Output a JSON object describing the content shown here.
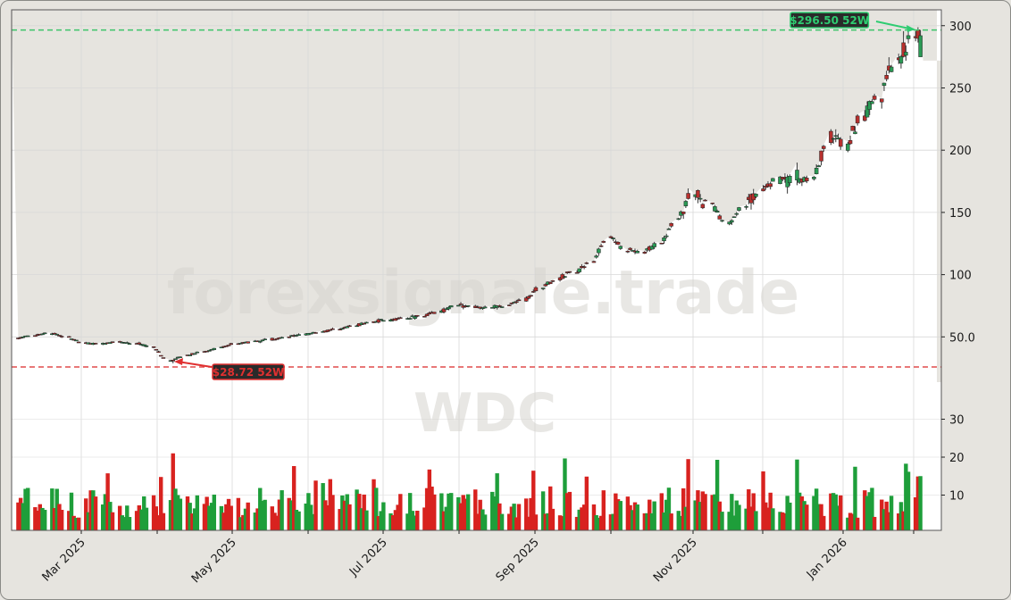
{
  "chart_data": {
    "type": "candlestick",
    "ticker": "WDC",
    "watermark": "forexsignale.trade",
    "price_axis": {
      "ticks": [
        50,
        100,
        150,
        200,
        250,
        300
      ],
      "tick_labels": [
        "50.0",
        "100",
        "150",
        "200",
        "250",
        "300"
      ],
      "ylim": [
        0,
        313
      ],
      "side": "right"
    },
    "volume_axis": {
      "ticks": [
        10,
        20,
        30
      ],
      "tick_labels": [
        "10",
        "20",
        "30"
      ],
      "ylim": [
        0,
        36
      ],
      "side": "right"
    },
    "x_axis": {
      "tick_labels": [
        "Mar 2025",
        "May 2025",
        "Jul 2025",
        "Sep 2025",
        "Nov 2025",
        "Jan 2026"
      ],
      "minor_ticks_months": [
        "Apr 2025",
        "Jun 2025",
        "Aug 2025",
        "Oct 2025",
        "Dec 2025",
        "Feb 2026"
      ],
      "range": [
        "2025-02-01",
        "2026-02-13"
      ]
    },
    "annotations": [
      {
        "label": "$296.50 52W",
        "type": "52-week high",
        "value": 296.5,
        "color": "#2ecc71"
      },
      {
        "label": "$28.72 52W",
        "type": "52-week low",
        "value": 28.72,
        "color": "#e03030"
      }
    ],
    "colors": {
      "up": "#1e9e3a",
      "down": "#d8221f",
      "high_line": "#3cc36a",
      "low_line": "#e04b4b",
      "background": "#e6e4df"
    },
    "weekly_close_approx": [
      {
        "date": "2025-02-03",
        "close": 49
      },
      {
        "date": "2025-02-10",
        "close": 51
      },
      {
        "date": "2025-02-17",
        "close": 53
      },
      {
        "date": "2025-02-24",
        "close": 50
      },
      {
        "date": "2025-03-03",
        "close": 45
      },
      {
        "date": "2025-03-10",
        "close": 44
      },
      {
        "date": "2025-03-17",
        "close": 46
      },
      {
        "date": "2025-03-24",
        "close": 45
      },
      {
        "date": "2025-03-31",
        "close": 42
      },
      {
        "date": "2025-04-07",
        "close": 31
      },
      {
        "date": "2025-04-14",
        "close": 35
      },
      {
        "date": "2025-04-21",
        "close": 38
      },
      {
        "date": "2025-04-28",
        "close": 41
      },
      {
        "date": "2025-05-05",
        "close": 45
      },
      {
        "date": "2025-05-12",
        "close": 46
      },
      {
        "date": "2025-05-19",
        "close": 48
      },
      {
        "date": "2025-05-26",
        "close": 50
      },
      {
        "date": "2025-06-02",
        "close": 52
      },
      {
        "date": "2025-06-09",
        "close": 54
      },
      {
        "date": "2025-06-16",
        "close": 56
      },
      {
        "date": "2025-06-23",
        "close": 59
      },
      {
        "date": "2025-06-30",
        "close": 62
      },
      {
        "date": "2025-07-07",
        "close": 64
      },
      {
        "date": "2025-07-14",
        "close": 65
      },
      {
        "date": "2025-07-21",
        "close": 67
      },
      {
        "date": "2025-07-28",
        "close": 70
      },
      {
        "date": "2025-08-04",
        "close": 76
      },
      {
        "date": "2025-08-11",
        "close": 74
      },
      {
        "date": "2025-08-18",
        "close": 74
      },
      {
        "date": "2025-08-25",
        "close": 75
      },
      {
        "date": "2025-09-01",
        "close": 80
      },
      {
        "date": "2025-09-08",
        "close": 90
      },
      {
        "date": "2025-09-15",
        "close": 97
      },
      {
        "date": "2025-09-22",
        "close": 103
      },
      {
        "date": "2025-09-29",
        "close": 110
      },
      {
        "date": "2025-10-06",
        "close": 131
      },
      {
        "date": "2025-10-13",
        "close": 120
      },
      {
        "date": "2025-10-20",
        "close": 118
      },
      {
        "date": "2025-10-27",
        "close": 125
      },
      {
        "date": "2025-11-03",
        "close": 145
      },
      {
        "date": "2025-11-10",
        "close": 165
      },
      {
        "date": "2025-11-17",
        "close": 155
      },
      {
        "date": "2025-11-24",
        "close": 140
      },
      {
        "date": "2025-12-01",
        "close": 155
      },
      {
        "date": "2025-12-08",
        "close": 168
      },
      {
        "date": "2025-12-15",
        "close": 175
      },
      {
        "date": "2025-12-22",
        "close": 178
      },
      {
        "date": "2025-12-29",
        "close": 176
      },
      {
        "date": "2026-01-05",
        "close": 210
      },
      {
        "date": "2026-01-12",
        "close": 205
      },
      {
        "date": "2026-01-19",
        "close": 228
      },
      {
        "date": "2026-01-26",
        "close": 245
      },
      {
        "date": "2026-02-02",
        "close": 270
      },
      {
        "date": "2026-02-09",
        "close": 290
      }
    ]
  }
}
